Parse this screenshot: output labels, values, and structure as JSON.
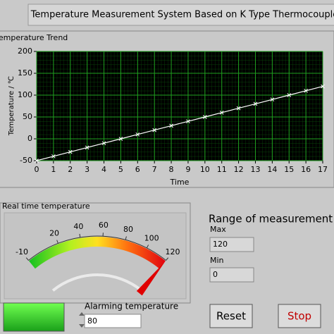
{
  "title": "Temperature Measurement System Based on K Type Thermocouple",
  "chart_data": {
    "type": "line",
    "title": "Temperature Trend",
    "x_label": "Time",
    "y_label": "Temperature / ℃",
    "x": [
      0,
      1,
      2,
      3,
      4,
      5,
      6,
      7,
      8,
      9,
      10,
      11,
      12,
      13,
      14,
      15,
      16,
      17
    ],
    "values": [
      -50,
      -40,
      -30,
      -20,
      -10,
      0,
      10,
      20,
      30,
      40,
      50,
      60,
      70,
      80,
      90,
      100,
      110,
      120
    ],
    "color": "#ffffff",
    "xlim": [
      0,
      17
    ],
    "xticks": [
      0,
      1,
      2,
      3,
      4,
      5,
      6,
      7,
      8,
      9,
      10,
      11,
      12,
      13,
      14,
      15,
      16,
      17
    ],
    "ylim": [
      -50,
      200
    ],
    "yticks": [
      -50,
      0,
      50,
      100,
      150,
      200
    ],
    "grid": true
  },
  "gauge": {
    "title": "Real time temperature",
    "lim": [
      -10,
      120
    ],
    "ticks": [
      -10,
      20,
      40,
      60,
      80,
      100,
      120
    ],
    "value": 120
  },
  "range": {
    "title": "Range of measurement",
    "max_label": "Max",
    "max": 120,
    "min_label": "Min",
    "min": 0
  },
  "alarm": {
    "label": "Alarming temperature",
    "value": 80
  },
  "buttons": {
    "reset": "Reset",
    "stop": "Stop"
  }
}
